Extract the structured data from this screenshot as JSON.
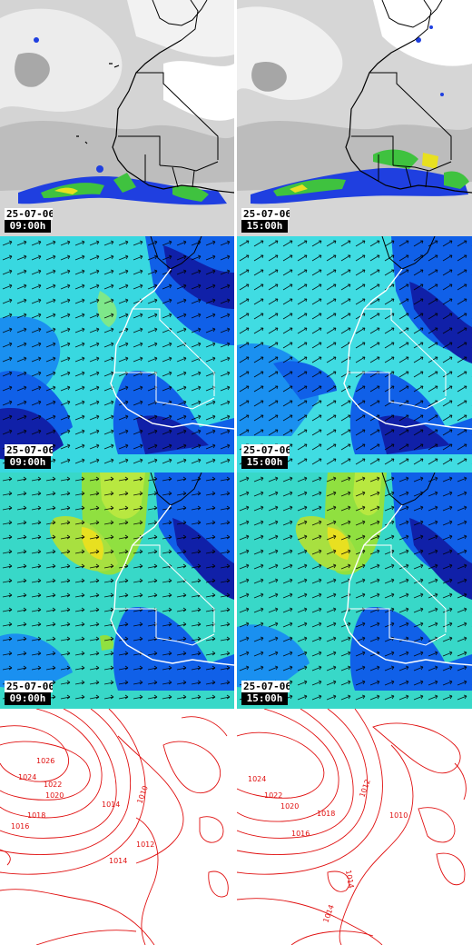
{
  "panels": {
    "cloud_left": {
      "date": "25-07-06",
      "time": "09:00h"
    },
    "cloud_right": {
      "date": "25-07-06",
      "time": "15:00h"
    },
    "wind_left": {
      "date": "25-07-06",
      "time": "09:00h"
    },
    "wind_right": {
      "date": "25-07-06",
      "time": "15:00h"
    },
    "gust_left": {
      "date": "25-07-06",
      "time": "09:00h"
    },
    "gust_right": {
      "date": "25-07-06",
      "time": "15:00h"
    }
  },
  "isobars": {
    "left": [
      "1026",
      "1024",
      "1022",
      "1020",
      "1018",
      "1016",
      "1014",
      "1012",
      "1010",
      "1014"
    ],
    "right": [
      "1024",
      "1022",
      "1020",
      "1018",
      "1016",
      "1012",
      "1010",
      "1014",
      "1014"
    ]
  },
  "colors": {
    "cloud_grey": "#b8b8b8",
    "cloud_white": "#ececec",
    "precip_blue": "#1f3fe0",
    "precip_green": "#3fc23f",
    "precip_yellow": "#e8e020",
    "wind_cyan": "#38d8e0",
    "wind_blue": "#1060e8",
    "wind_dark": "#1020a8",
    "gust_green": "#90e040",
    "isobar_red": "#e01010",
    "coast_black": "#000000"
  }
}
